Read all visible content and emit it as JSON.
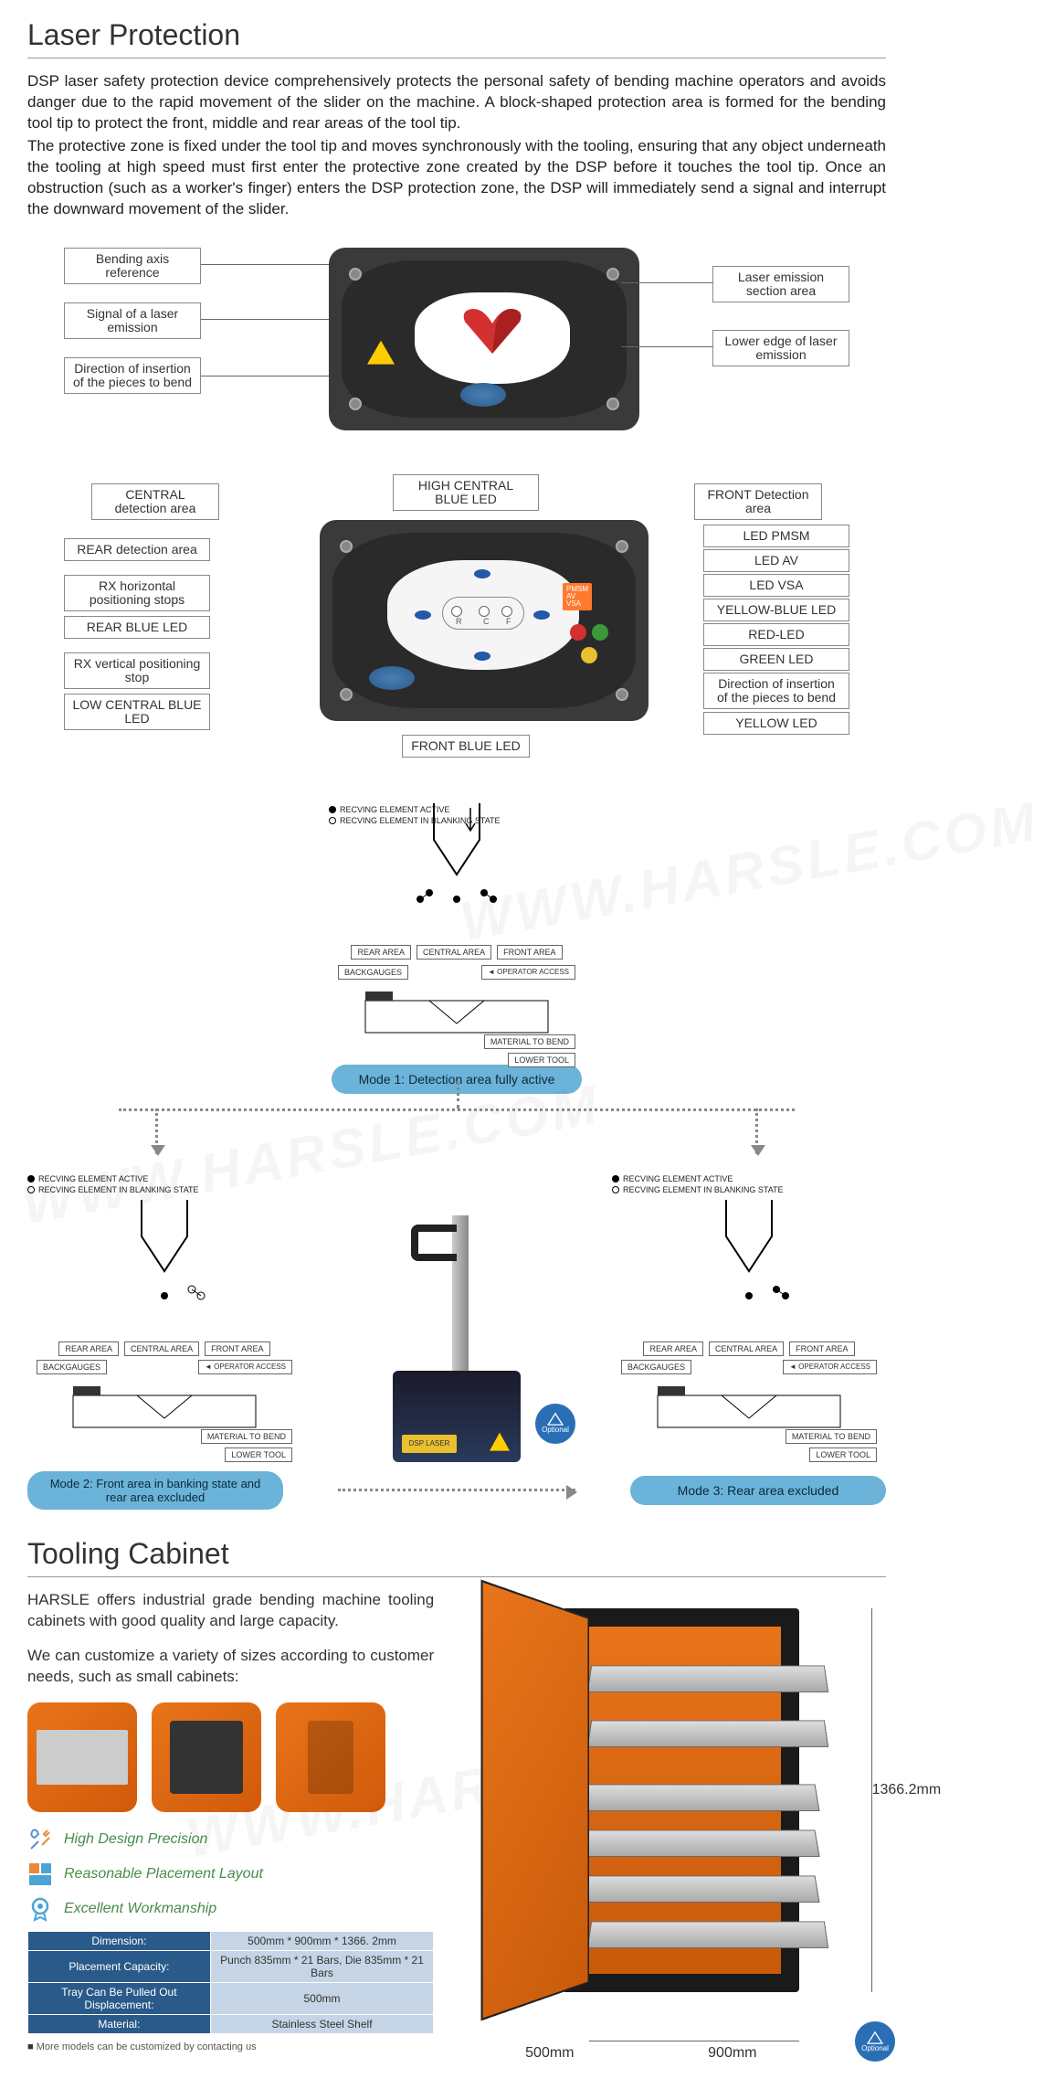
{
  "laser": {
    "title": "Laser Protection",
    "p1": "DSP laser safety protection device comprehensively protects the personal safety of bending machine operators and avoids danger due to the rapid movement of the slider on the machine. A block-shaped protection area is formed for the bending tool tip to protect the front, middle and rear areas of the tool tip.",
    "p2": "The protective zone is fixed under the tool tip and moves synchronously with the tooling, ensuring that any object underneath the tooling at high speed must first enter the protective zone created by the DSP before it touches the tool tip. Once an obstruction (such as a worker's finger) enters the DSP protection zone, the DSP will immediately send a signal and interrupt the downward movement of the slider."
  },
  "diag1_labels": {
    "l1": "Bending axis reference",
    "l2": "Signal of a laser emission",
    "l3": "Direction of insertion of the pieces to bend",
    "r1": "Laser emission section area",
    "r2": "Lower edge of laser emission"
  },
  "diag2_labels": {
    "top_l": "CENTRAL detection area",
    "top_c": "HIGH CENTRAL BLUE LED",
    "top_r": "FRONT Detection area",
    "l1": "REAR detection area",
    "l2": "RX horizontal positioning stops",
    "l3": "REAR BLUE LED",
    "l4": "RX vertical positioning stop",
    "l5": "LOW CENTRAL BLUE LED",
    "r1": "LED PMSM",
    "r2": "LED AV",
    "r3": "LED VSA",
    "r4": "YELLOW-BLUE LED",
    "r5": "RED-LED",
    "r6": "GREEN LED",
    "r7": "Direction of insertion of the pieces to bend",
    "r8": "YELLOW LED",
    "bottom": "FRONT BLUE LED",
    "sensor": "PMSM\nAV\nVSA"
  },
  "modes": {
    "legend_active": "RECVING ELEMENT ACTIVE",
    "legend_blank": "RECVING ELEMENT IN BLANKING STATE",
    "rear": "REAR AREA",
    "central": "CENTRAL AREA",
    "front": "FRONT AREA",
    "back": "BACKGAUGES",
    "access": "OPERATOR ACCESS",
    "material": "MATERIAL TO BEND",
    "lower": "LOWER TOOL",
    "mode1": "Mode 1: Detection area fully active",
    "mode2": "Mode 2: Front area in banking state and rear area excluded",
    "mode3": "Mode 3: Rear area excluded",
    "optional": "Optional"
  },
  "cabinet": {
    "title": "Tooling Cabinet",
    "p1": "HARSLE offers industrial grade bending machine tooling cabinets with good quality and large capacity.",
    "p2": "We can customize a variety of sizes according to customer needs, such as small cabinets:",
    "f1": "High Design Precision",
    "f2": "Reasonable Placement Layout",
    "f3": "Excellent Workmanship",
    "spec": [
      {
        "k": "Dimension:",
        "v": "500mm * 900mm * 1366. 2mm"
      },
      {
        "k": "Placement Capacity:",
        "v": "Punch 835mm * 21 Bars, Die 835mm * 21 Bars"
      },
      {
        "k": "Tray Can Be Pulled Out Displacement:",
        "v": "500mm"
      },
      {
        "k": "Material:",
        "v": "Stainless Steel Shelf"
      }
    ],
    "note": "More models can be customized by contacting us",
    "dim_h": "1366.2mm",
    "dim_w": "900mm",
    "dim_d": "500mm",
    "optional": "Optional"
  },
  "colors": {
    "orange": "#e8741a",
    "blue_pill": "#6bb3d9",
    "table_k": "#2a5a8a",
    "table_v": "#c5d5e5",
    "led_red": "#d43030",
    "led_green": "#3a9a3a",
    "led_yellow": "#e8c030",
    "led_blue": "#2458a8"
  },
  "watermark": "WWW.HARSLE.COM"
}
